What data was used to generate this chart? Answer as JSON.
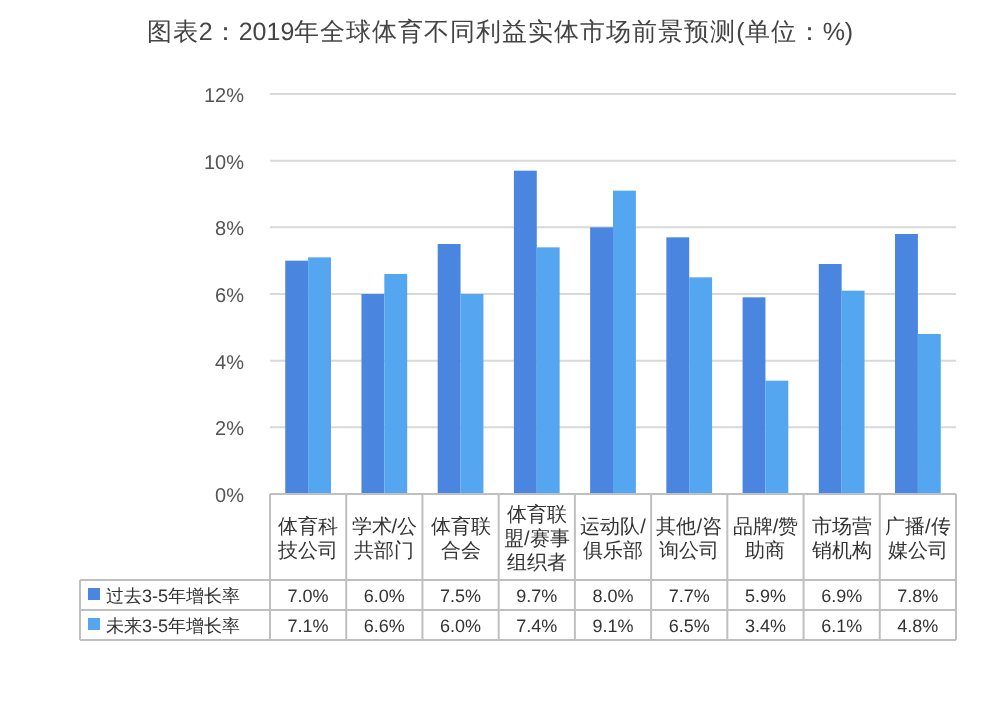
{
  "chart_data": {
    "type": "bar",
    "title": "图表2：2019年全球体育不同利益实体市场前景预测(单位：%)",
    "categories": [
      "体育科技公司",
      "学术/公共部门",
      "体育联合会",
      "体育联盟/赛事组织者",
      "运动队/俱乐部",
      "其他/咨询公司",
      "品牌/赞助商",
      "市场营销机构",
      "广播/传媒公司"
    ],
    "series": [
      {
        "name": "过去3-5年增长率",
        "color": "#4a86e0",
        "values": [
          7.0,
          6.0,
          7.5,
          9.7,
          8.0,
          7.7,
          5.9,
          6.9,
          7.8
        ],
        "value_labels": [
          "7.0%",
          "6.0%",
          "7.5%",
          "9.7%",
          "8.0%",
          "7.7%",
          "5.9%",
          "6.9%",
          "7.8%"
        ]
      },
      {
        "name": "未来3-5年增长率",
        "color": "#55a6f0",
        "values": [
          7.1,
          6.6,
          6.0,
          7.4,
          9.1,
          6.5,
          3.4,
          6.1,
          4.8
        ],
        "value_labels": [
          "7.1%",
          "6.6%",
          "6.0%",
          "7.4%",
          "9.1%",
          "6.5%",
          "3.4%",
          "6.1%",
          "4.8%"
        ]
      }
    ],
    "ylim": [
      0,
      12
    ],
    "yticks": [
      {
        "value": 0,
        "label": "0%"
      },
      {
        "value": 2,
        "label": "2%"
      },
      {
        "value": 4,
        "label": "4%"
      },
      {
        "value": 6,
        "label": "6%"
      },
      {
        "value": 8,
        "label": "8%"
      },
      {
        "value": 10,
        "label": "10%"
      },
      {
        "value": 12,
        "label": "12%"
      }
    ],
    "grid": "y",
    "legend": "bottom"
  }
}
